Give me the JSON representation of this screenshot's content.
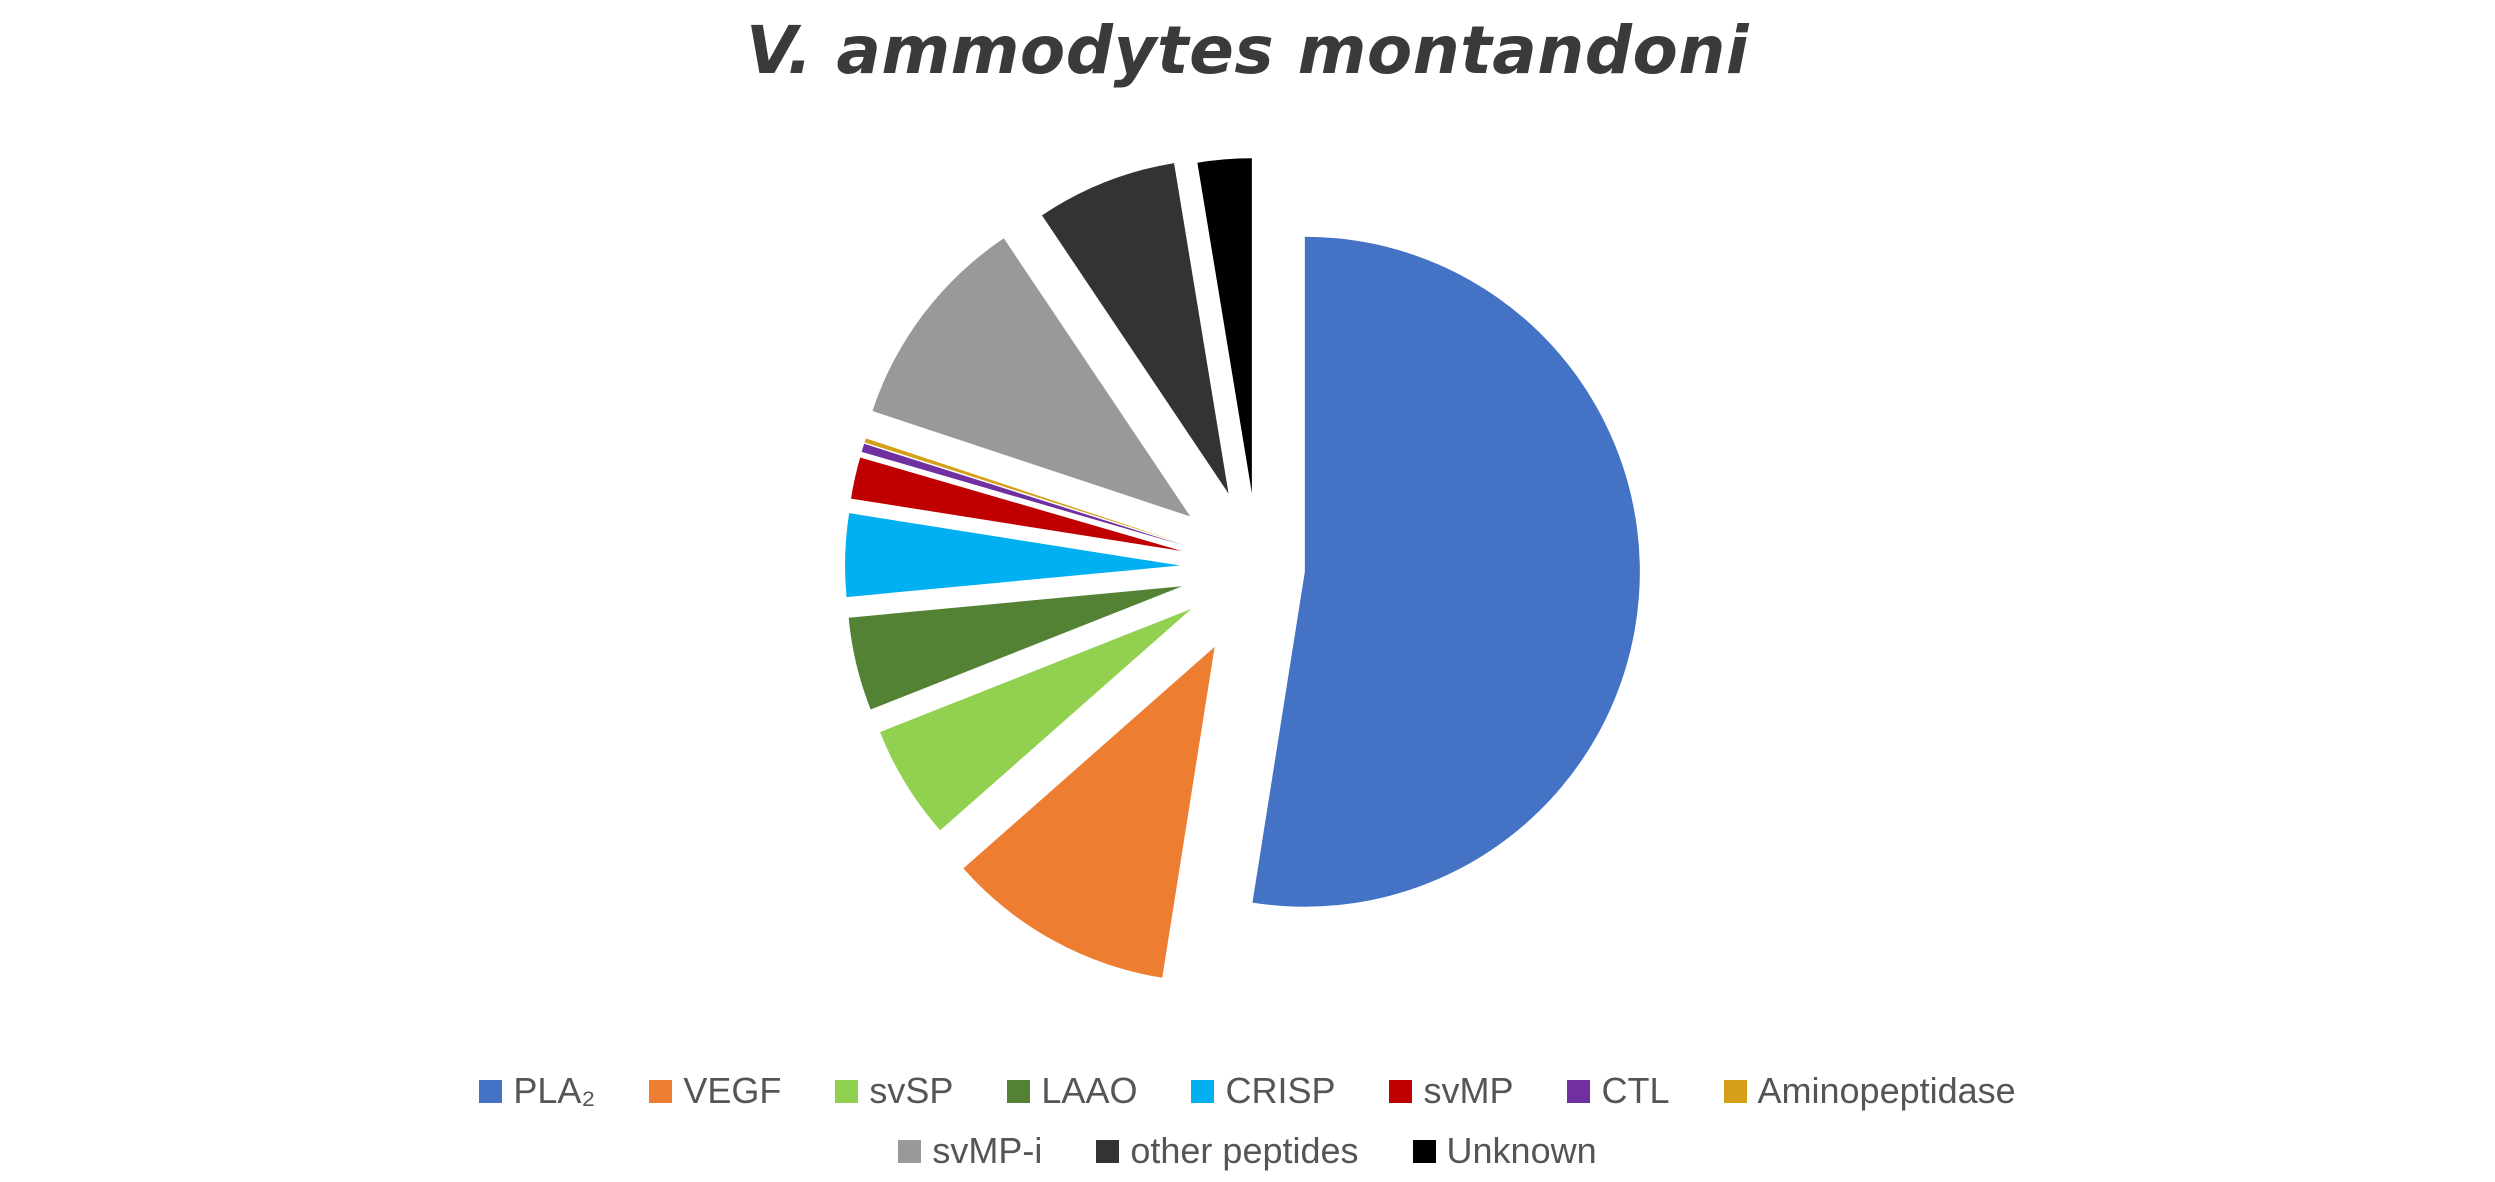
{
  "chart_data": {
    "type": "pie",
    "title": "V. ammodytes montandoni",
    "exploded": true,
    "slices": [
      {
        "label": "PLA₂",
        "value": 52.5,
        "color": "#4472C4"
      },
      {
        "label": "VEGF",
        "value": 11.0,
        "color": "#ED7D31"
      },
      {
        "label": "svSP",
        "value": 5.5,
        "color": "#92D050"
      },
      {
        "label": "LAAO",
        "value": 4.5,
        "color": "#548235"
      },
      {
        "label": "CRISP",
        "value": 4.0,
        "color": "#00B0F0"
      },
      {
        "label": "svMP",
        "value": 2.0,
        "color": "#C00000"
      },
      {
        "label": "CTL",
        "value": 0.4,
        "color": "#7030A0"
      },
      {
        "label": "Aminopeptidase",
        "value": 0.2,
        "color": "#D4A017"
      },
      {
        "label": "svMP-i",
        "value": 10.5,
        "color": "#999999"
      },
      {
        "label": "other peptides",
        "value": 6.8,
        "color": "#333333"
      },
      {
        "label": "Unknown",
        "value": 2.6,
        "color": "#000000"
      }
    ],
    "legend": {
      "placement": "bottom",
      "rows": [
        [
          "PLA₂",
          "VEGF",
          "svSP",
          "LAAO",
          "CRISP",
          "svMP",
          "CTL",
          "Aminopeptidase"
        ],
        [
          "svMP-i",
          "other peptides",
          "Unknown"
        ]
      ]
    }
  }
}
